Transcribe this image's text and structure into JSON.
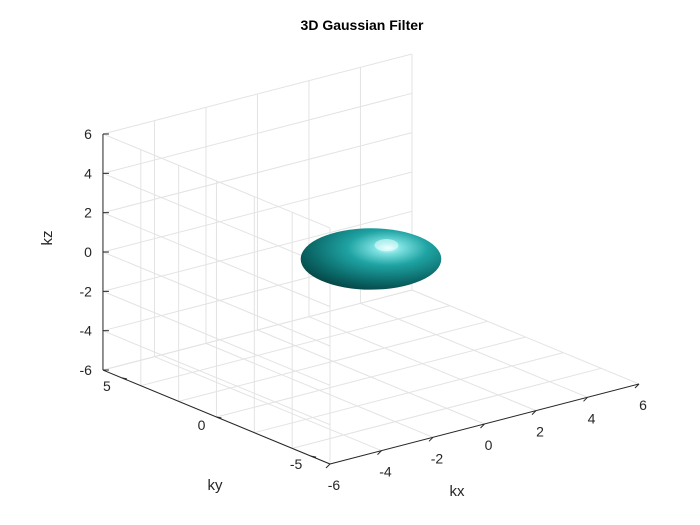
{
  "chart_data": {
    "type": "surface",
    "title": "3D Gaussian Filter",
    "xlabel": "kx",
    "ylabel": "ky",
    "zlabel": "kz",
    "xlim": [
      -6,
      6
    ],
    "ylim": [
      -6,
      6
    ],
    "zlim": [
      -6,
      6
    ],
    "xticks": [
      -6,
      -4,
      -2,
      0,
      2,
      4,
      6
    ],
    "yticks": [
      -5,
      0,
      5
    ],
    "zticks": [
      -6,
      -4,
      -2,
      0,
      2,
      4,
      6
    ],
    "grid": true,
    "surface": {
      "shape": "ellipsoid",
      "center": [
        0,
        0,
        0
      ],
      "radii": [
        2,
        2,
        1.3
      ],
      "color": "#1c9c9c",
      "highlight_color": "#e8ffff"
    }
  }
}
